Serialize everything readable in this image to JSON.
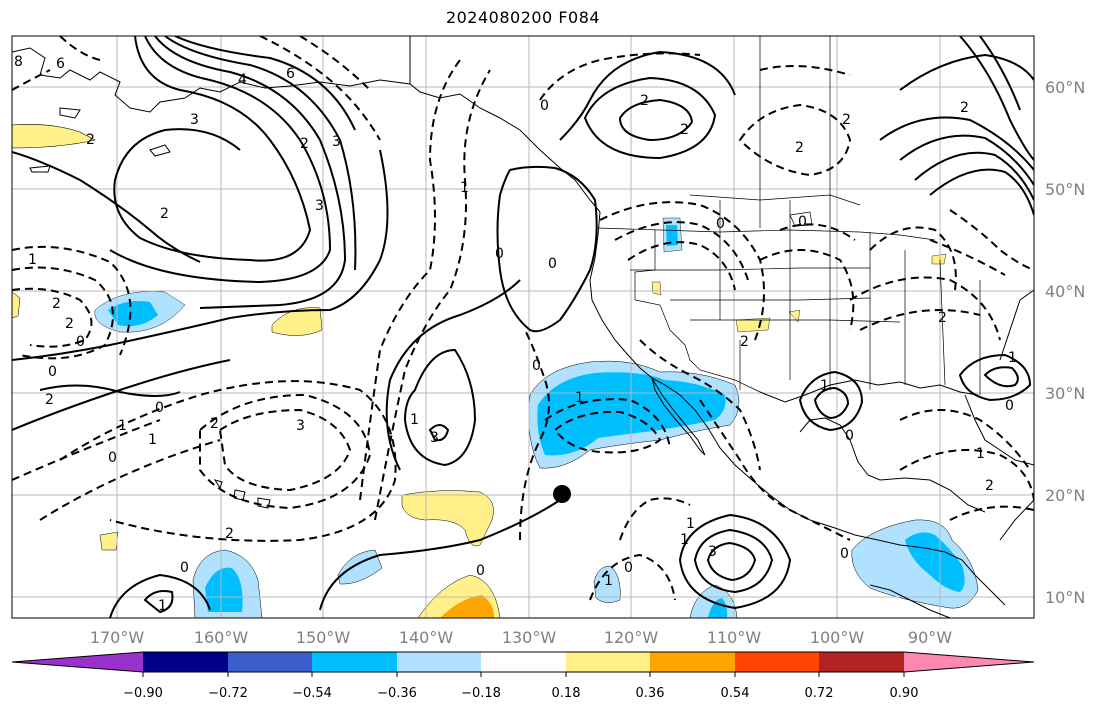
{
  "title": "2024080200 F084",
  "map": {
    "lon_labels": [
      "170°W",
      "160°W",
      "150°W",
      "140°W",
      "130°W",
      "120°W",
      "110°W",
      "100°W",
      "90°W"
    ],
    "lat_labels": [
      "60°N",
      "50°N",
      "40°N",
      "30°N",
      "20°N",
      "10°N"
    ]
  },
  "colorbar": {
    "tick_labels": [
      "−0.90",
      "−0.72",
      "−0.54",
      "−0.36",
      "−0.18",
      "0.18",
      "0.36",
      "0.54",
      "0.72",
      "0.90"
    ],
    "colors": [
      "#9932cc",
      "#00008b",
      "#3a5fcd",
      "#00bfff",
      "#b0e2ff",
      "#ffffff",
      "#fff08a",
      "#ffa500",
      "#ff4500",
      "#b22222",
      "#ff88b0"
    ]
  },
  "contour_labels": [
    "8",
    "6",
    "4",
    "6",
    "3",
    "2",
    "2",
    "3",
    "3",
    "3",
    "2",
    "0",
    "2",
    "2",
    "2",
    "0",
    "2",
    "0",
    "2",
    "1",
    "0",
    "0",
    "1",
    "0",
    "2",
    "2",
    "1",
    "0",
    "0",
    "1",
    "0",
    "2",
    "3",
    "1",
    "2",
    "0",
    "1",
    "0",
    "2",
    "1",
    "0",
    "2",
    "1",
    "0",
    "1",
    "2",
    "1",
    "1",
    "3",
    "0",
    "1",
    "0",
    "1",
    "0",
    "2"
  ],
  "marker": "storm-position-dot"
}
